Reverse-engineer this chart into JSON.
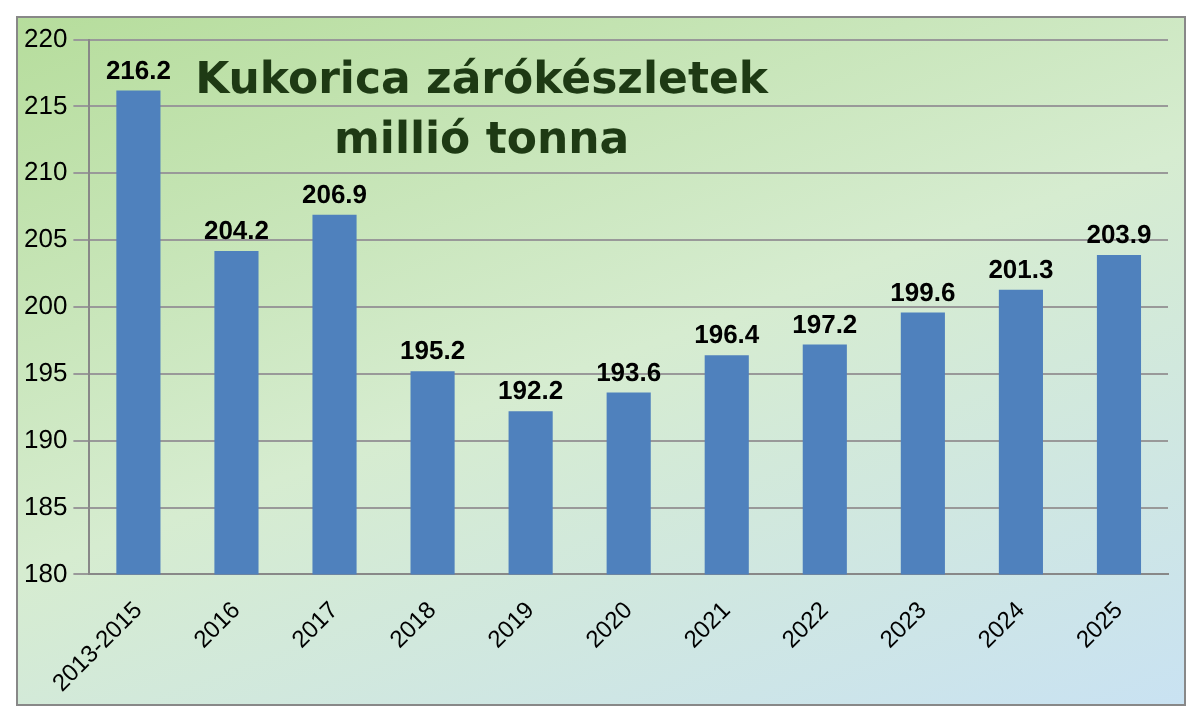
{
  "chart_data": {
    "type": "bar",
    "title": "Kukorica zárókészletek",
    "subtitle": "millió tonna",
    "categories": [
      "2013-2015",
      "2016",
      "2017",
      "2018",
      "2019",
      "2020",
      "2021",
      "2022",
      "2023",
      "2024",
      "2025"
    ],
    "values": [
      216.2,
      204.2,
      206.9,
      195.2,
      192.2,
      193.6,
      196.4,
      197.2,
      199.6,
      201.3,
      203.9
    ],
    "color": "#4f81bd",
    "ylim": [
      180,
      220
    ],
    "yticks": [
      180,
      185,
      190,
      195,
      200,
      205,
      210,
      215,
      220
    ],
    "grid": "y",
    "data_labels": true
  }
}
